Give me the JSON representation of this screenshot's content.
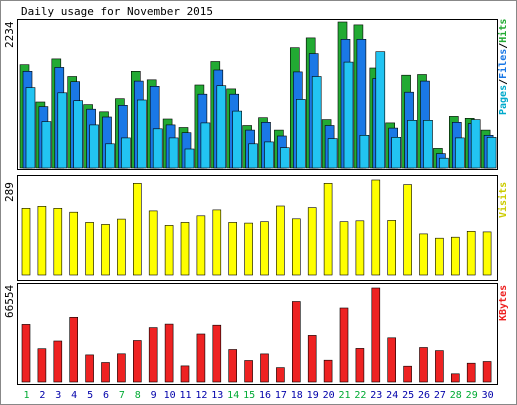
{
  "title": "Daily usage for November 2015",
  "panels": {
    "hits": {
      "max_label": "2234",
      "right_label_parts": [
        "Pages",
        "/",
        "Files",
        "/",
        "Hits"
      ]
    },
    "visits": {
      "max_label": "289",
      "right_label": "Visits"
    },
    "kbytes": {
      "max_label": "66554",
      "right_label": "KBytes"
    }
  },
  "colors": {
    "background": "#ffffff",
    "panel_border": "#000000",
    "title_bg": "#ffffff",
    "hits": "#22aa33",
    "files": "#1a78e6",
    "pages": "#22c4f2",
    "visits": "#ffff00",
    "kbytes": "#ee2222",
    "weekday": "#0000aa",
    "weekend": "#00aa33",
    "pages_label": "#00aacc",
    "files_label": "#1a78e6",
    "hits_label": "#22aa33",
    "visits_label": "#cccc00",
    "kbytes_label": "#ee2222"
  },
  "chart_data": {
    "type": "bar",
    "title": "Daily usage for November 2015",
    "categories": [
      "1",
      "2",
      "3",
      "4",
      "5",
      "6",
      "7",
      "8",
      "9",
      "10",
      "11",
      "12",
      "13",
      "14",
      "15",
      "16",
      "17",
      "18",
      "19",
      "20",
      "21",
      "22",
      "23",
      "24",
      "25",
      "26",
      "27",
      "28",
      "29",
      "30"
    ],
    "weekend_days": [
      "1",
      "7",
      "8",
      "14",
      "15",
      "21",
      "22",
      "28",
      "29"
    ],
    "series": [
      {
        "name": "Hits",
        "values": [
          1580,
          1010,
          1670,
          1400,
          970,
          860,
          1060,
          1480,
          1350,
          750,
          620,
          1270,
          1630,
          1210,
          650,
          770,
          580,
          1840,
          1990,
          740,
          2234,
          2190,
          1530,
          690,
          1420,
          1430,
          300,
          790,
          760,
          580
        ]
      },
      {
        "name": "Files",
        "values": [
          1480,
          940,
          1540,
          1320,
          900,
          780,
          960,
          1330,
          1250,
          660,
          540,
          1130,
          1500,
          1130,
          580,
          700,
          490,
          1470,
          1750,
          650,
          1970,
          1970,
          1370,
          610,
          1160,
          1330,
          220,
          700,
          680,
          500
        ]
      },
      {
        "name": "Pages",
        "values": [
          1230,
          710,
          1150,
          1030,
          660,
          370,
          460,
          1040,
          600,
          460,
          290,
          690,
          1260,
          870,
          370,
          400,
          310,
          1050,
          1400,
          450,
          1620,
          500,
          1780,
          470,
          730,
          730,
          150,
          460,
          740,
          470
        ]
      },
      {
        "name": "Visits",
        "values": [
          203,
          209,
          203,
          191,
          160,
          154,
          170,
          279,
          195,
          151,
          160,
          180,
          198,
          160,
          158,
          162,
          210,
          171,
          205,
          279,
          162,
          165,
          289,
          166,
          275,
          125,
          112,
          115,
          133,
          131
        ]
      },
      {
        "name": "KBytes",
        "values": [
          40800,
          23600,
          29000,
          45800,
          19200,
          13800,
          20000,
          29400,
          38500,
          41000,
          11400,
          34000,
          40200,
          23000,
          15200,
          19900,
          10200,
          57000,
          33000,
          15400,
          52400,
          23800,
          66554,
          31300,
          11200,
          24400,
          22200,
          5800,
          13300,
          14500
        ]
      }
    ],
    "ylim_hits": [
      0,
      2234
    ],
    "ylim_visits": [
      0,
      289
    ],
    "ylim_kbytes": [
      0,
      66554
    ]
  }
}
